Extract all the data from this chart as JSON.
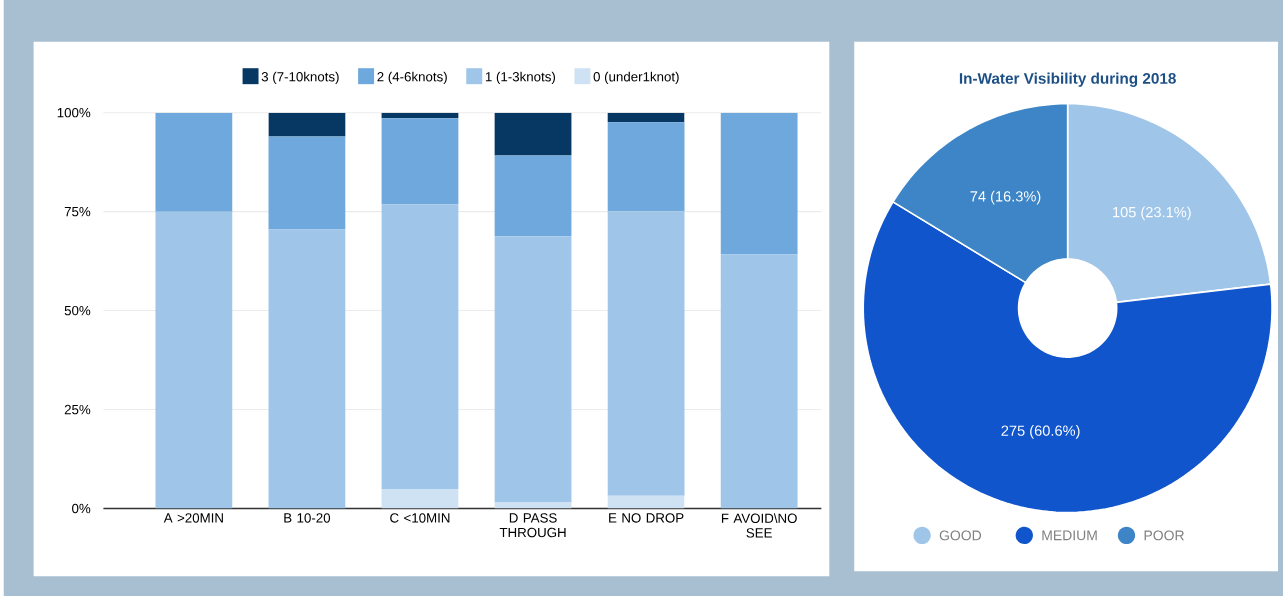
{
  "chart_data": [
    {
      "type": "bar",
      "stacked": true,
      "categories": [
        "A >20MIN",
        "B 10-20",
        "C <10MIN",
        "D PASS THROUGH",
        "E NO DROP",
        "F AVOID\\NO SEE"
      ],
      "series": [
        {
          "name": "0 (under1knot)",
          "color": "#cfe2f3",
          "values": [
            0,
            0,
            4.9,
            1.5,
            3.2,
            0
          ]
        },
        {
          "name": "1 (1-3knots)",
          "color": "#9fc5e8",
          "values": [
            75,
            70.5,
            71.9,
            67.3,
            71.9,
            64.2
          ]
        },
        {
          "name": "2 (4-6knots)",
          "color": "#6fa8dc",
          "values": [
            25,
            23.5,
            21.8,
            20.4,
            22.5,
            35.8
          ]
        },
        {
          "name": "3 (7-10knots)",
          "color": "#073763",
          "values": [
            0,
            6.0,
            1.4,
            10.8,
            2.4,
            0
          ]
        }
      ],
      "ylim": [
        0,
        100
      ],
      "yticks": [
        {
          "value": 0,
          "label": "0%"
        },
        {
          "value": 25,
          "label": "25%"
        },
        {
          "value": 50,
          "label": "50%"
        },
        {
          "value": 75,
          "label": "75%"
        },
        {
          "value": 100,
          "label": "100%"
        }
      ],
      "grid": "y",
      "legend": "top"
    },
    {
      "type": "donut",
      "title": "In-Water Visibility during 2018",
      "categories": [
        "GOOD",
        "MEDIUM",
        "POOR"
      ],
      "values": [
        105,
        275,
        74
      ],
      "colors": [
        "#9fc5e8",
        "#1155cc",
        "#3d85c6"
      ],
      "value_labels": [
        "105 (23.1%)",
        "275 (60.6%)",
        "74 (16.3%)"
      ],
      "legend": "bottom"
    }
  ]
}
